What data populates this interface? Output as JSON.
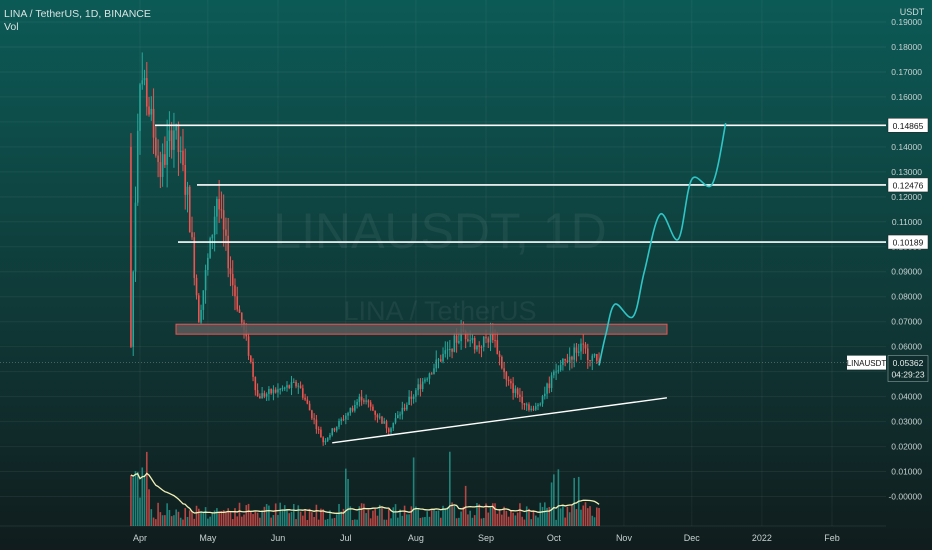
{
  "header": {
    "symbol_line": "LINA / TetherUS, 1D, BINANCE",
    "indicator": "Vol"
  },
  "axis": {
    "currency": "USDT"
  },
  "watermark": {
    "ticker": "LINAUSDT, 1D",
    "pair": "LINA / TetherUS"
  },
  "price_tag": {
    "symbol": "LINAUSDT",
    "price": "0.05362",
    "countdown": "04:29:23"
  },
  "colors": {
    "background": "#0f2d2c",
    "up": "#26a69a",
    "down": "#ef5350",
    "level_line": "#ffffff",
    "projection": "#2fc5c6",
    "volume_ma": "#f2f2b6",
    "zone": "#5a5a5a"
  },
  "chart_data": {
    "type": "candlestick",
    "y_axis": {
      "min": -0.005,
      "max": 0.19,
      "ticks": [
        "0.19000",
        "0.18000",
        "0.17000",
        "0.16000",
        "0.15000",
        "0.14000",
        "0.13000",
        "0.12000",
        "0.11000",
        "0.10000",
        "0.09000",
        "0.08000",
        "0.07000",
        "0.06000",
        "0.05000",
        "0.04000",
        "0.03000",
        "0.02000",
        "0.01000",
        "-0.00000"
      ]
    },
    "x_axis": {
      "labels": [
        "Apr",
        "May",
        "Jun",
        "Jul",
        "Aug",
        "Sep",
        "Oct",
        "Nov",
        "Dec",
        "2022",
        "Feb"
      ]
    },
    "price_series_keypoints": [
      {
        "date": "Mar 28",
        "price": 0.18
      },
      {
        "date": "Apr 3",
        "price": 0.165
      },
      {
        "date": "Apr 10",
        "price": 0.13
      },
      {
        "date": "Apr 16",
        "price": 0.148
      },
      {
        "date": "Apr 22",
        "price": 0.12
      },
      {
        "date": "Apr 27",
        "price": 0.072
      },
      {
        "date": "May 2",
        "price": 0.1
      },
      {
        "date": "May 5",
        "price": 0.12
      },
      {
        "date": "May 12",
        "price": 0.085
      },
      {
        "date": "May 19",
        "price": 0.058
      },
      {
        "date": "May 23",
        "price": 0.04
      },
      {
        "date": "Jun 10",
        "price": 0.045
      },
      {
        "date": "Jun 21",
        "price": 0.022
      },
      {
        "date": "Jul 8",
        "price": 0.04
      },
      {
        "date": "Jul 20",
        "price": 0.027
      },
      {
        "date": "Aug 7",
        "price": 0.05
      },
      {
        "date": "Aug 22",
        "price": 0.066
      },
      {
        "date": "Aug 28",
        "price": 0.06
      },
      {
        "date": "Sep 4",
        "price": 0.065
      },
      {
        "date": "Sep 10",
        "price": 0.046
      },
      {
        "date": "Sep 22",
        "price": 0.034
      },
      {
        "date": "Oct 2",
        "price": 0.05
      },
      {
        "date": "Oct 12",
        "price": 0.06
      },
      {
        "date": "Oct 21",
        "price": 0.0536
      }
    ],
    "horizontal_levels": [
      {
        "price": 0.14865,
        "label": "0.14865"
      },
      {
        "price": 0.12476,
        "label": "0.12476"
      },
      {
        "price": 0.10189,
        "label": "0.10189"
      }
    ],
    "resistance_zone": {
      "from_price": 0.065,
      "to_price": 0.069
    },
    "trendline": {
      "from": {
        "date": "Jun 25",
        "price": 0.0215
      },
      "to": {
        "date": "Nov 20",
        "price": 0.0395
      }
    },
    "projection_path": [
      {
        "date": "Oct 21",
        "price": 0.0525
      },
      {
        "date": "Oct 24",
        "price": 0.065
      },
      {
        "date": "Oct 28",
        "price": 0.077
      },
      {
        "date": "Nov 5",
        "price": 0.072
      },
      {
        "date": "Nov 10",
        "price": 0.09
      },
      {
        "date": "Nov 17",
        "price": 0.113
      },
      {
        "date": "Nov 25",
        "price": 0.103
      },
      {
        "date": "Dec 1",
        "price": 0.127
      },
      {
        "date": "Dec 10",
        "price": 0.125
      },
      {
        "date": "Dec 16",
        "price": 0.1495
      }
    ],
    "last_price": 0.05362
  }
}
